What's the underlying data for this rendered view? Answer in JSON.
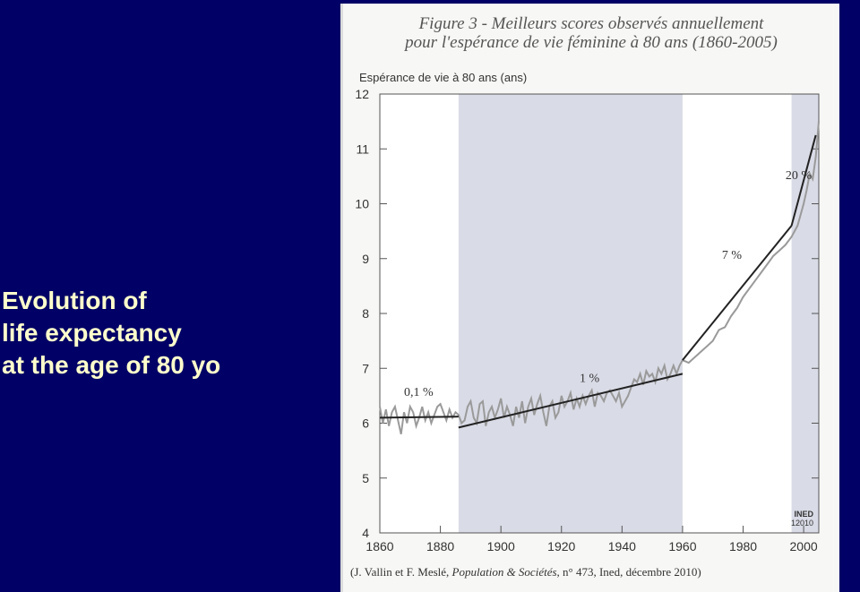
{
  "slide": {
    "title_lines": [
      "Evolution of",
      "life expectancy",
      "at the age of 80 yo"
    ],
    "background": "#000066",
    "title_color": "#ffffcc"
  },
  "chart_data": {
    "type": "line",
    "title_lines": [
      "Figure 3 - Meilleurs scores observés annuellement",
      "pour l'espérance de vie féminine à 80 ans (1860-2005)"
    ],
    "ylabel": "Espérance de vie à 80 ans (ans)",
    "xlabel": "",
    "xlim": [
      1860,
      2005
    ],
    "ylim": [
      4,
      12
    ],
    "x_ticks": [
      1860,
      1880,
      1900,
      1920,
      1940,
      1960,
      1980,
      2000
    ],
    "y_ticks": [
      4,
      5,
      6,
      7,
      8,
      9,
      10,
      11,
      12
    ],
    "shaded_periods": [
      [
        1886,
        1960
      ],
      [
        1996,
        2005
      ]
    ],
    "series": [
      {
        "x": [
          1860,
          1861,
          1862,
          1863,
          1864,
          1865,
          1866,
          1867,
          1868,
          1869,
          1870,
          1871,
          1872,
          1873,
          1874,
          1875,
          1876,
          1877,
          1878,
          1879,
          1880,
          1881,
          1882,
          1883,
          1884,
          1885,
          1886,
          1887,
          1888,
          1889,
          1890,
          1891,
          1892,
          1893,
          1894,
          1895,
          1896,
          1897,
          1898,
          1899,
          1900,
          1901,
          1902,
          1903,
          1904,
          1905,
          1906,
          1907,
          1908,
          1909,
          1910,
          1911,
          1912,
          1913,
          1914,
          1915,
          1916,
          1917,
          1918,
          1919,
          1920,
          1921,
          1922,
          1923,
          1924,
          1925,
          1926,
          1927,
          1928,
          1929,
          1930,
          1931,
          1932,
          1933,
          1934,
          1935,
          1936,
          1937,
          1938,
          1939,
          1940,
          1941,
          1942,
          1943,
          1944,
          1945,
          1946,
          1947,
          1948,
          1949,
          1950,
          1951,
          1952,
          1953,
          1954,
          1955,
          1956,
          1957,
          1958,
          1959,
          1960,
          1962,
          1964,
          1966,
          1968,
          1970,
          1972,
          1974,
          1976,
          1978,
          1980,
          1982,
          1984,
          1986,
          1988,
          1990,
          1992,
          1994,
          1996,
          1998,
          2000,
          2001,
          2002,
          2003,
          2004,
          2005
        ],
        "values": [
          6.3,
          6.0,
          6.25,
          5.95,
          6.2,
          6.3,
          6.05,
          5.8,
          6.2,
          6.0,
          6.3,
          6.2,
          5.95,
          6.1,
          6.3,
          6.05,
          6.2,
          6.0,
          6.15,
          6.3,
          6.35,
          6.2,
          6.05,
          6.25,
          6.1,
          6.2,
          6.15,
          6.0,
          6.05,
          6.3,
          6.4,
          6.1,
          6.0,
          6.35,
          6.4,
          5.95,
          6.2,
          6.3,
          6.1,
          6.25,
          6.45,
          6.1,
          6.3,
          6.15,
          5.95,
          6.3,
          6.1,
          6.4,
          6.0,
          6.3,
          6.45,
          6.15,
          6.35,
          6.5,
          6.2,
          5.95,
          6.3,
          6.4,
          6.1,
          6.2,
          6.5,
          6.3,
          6.4,
          6.55,
          6.25,
          6.45,
          6.3,
          6.5,
          6.35,
          6.5,
          6.6,
          6.3,
          6.55,
          6.5,
          6.4,
          6.55,
          6.6,
          6.5,
          6.4,
          6.55,
          6.3,
          6.4,
          6.5,
          6.65,
          6.8,
          6.75,
          6.9,
          6.7,
          6.95,
          6.85,
          6.9,
          6.75,
          7.0,
          6.9,
          7.05,
          6.8,
          6.9,
          7.05,
          6.9,
          7.05,
          7.15,
          7.1,
          7.2,
          7.3,
          7.4,
          7.5,
          7.7,
          7.75,
          7.95,
          8.1,
          8.3,
          8.45,
          8.6,
          8.75,
          8.9,
          9.05,
          9.15,
          9.25,
          9.4,
          9.6,
          10.0,
          10.25,
          10.55,
          10.45,
          10.85,
          11.5
        ]
      }
    ],
    "trend_lines": [
      {
        "label": "0,1 %",
        "x": [
          1860,
          1886
        ],
        "values": [
          6.1,
          6.12
        ],
        "label_x": 1868,
        "label_y": 6.5
      },
      {
        "label": "1 %",
        "x": [
          1886,
          1960
        ],
        "values": [
          5.92,
          6.9
        ],
        "label_x": 1926,
        "label_y": 6.75
      },
      {
        "label": "7 %",
        "x": [
          1960,
          1996
        ],
        "values": [
          7.15,
          9.6
        ],
        "label_x": 1973,
        "label_y": 9.0
      },
      {
        "label": "20 %",
        "x": [
          1996,
          2004
        ],
        "values": [
          9.6,
          11.25
        ],
        "label_x": 1994,
        "label_y": 10.45
      }
    ],
    "logo": "INED 12010",
    "source": {
      "prefix": "(J. Vallin et F. Meslé, ",
      "journal": "Population & Sociétés",
      "suffix": ", n° 473, Ined, décembre 2010)"
    }
  }
}
